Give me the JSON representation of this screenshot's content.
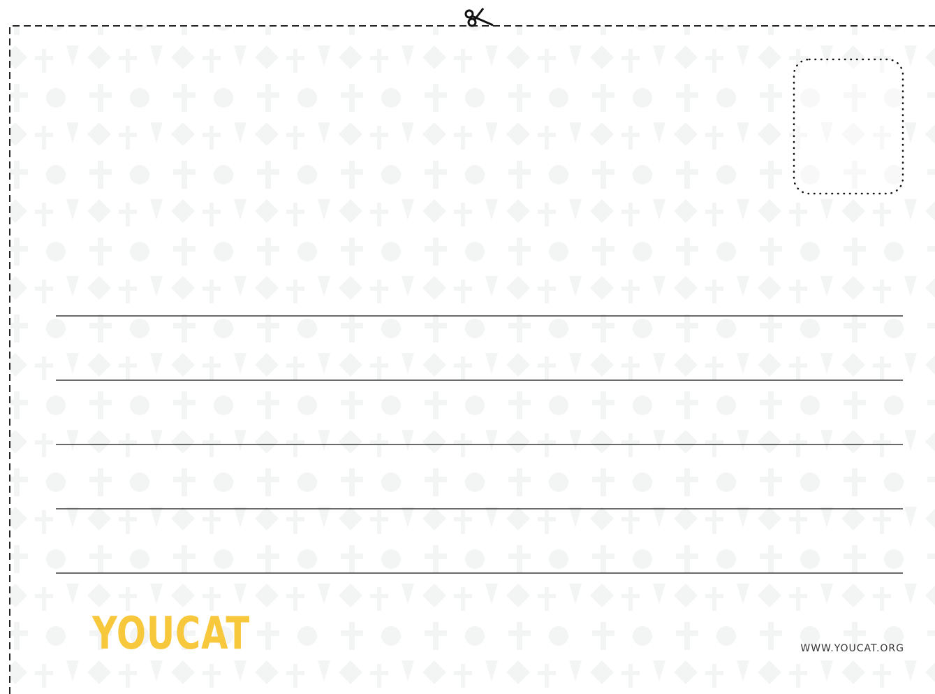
{
  "brand": "YOUCAT",
  "url": "WWW.YOUCAT.ORG"
}
